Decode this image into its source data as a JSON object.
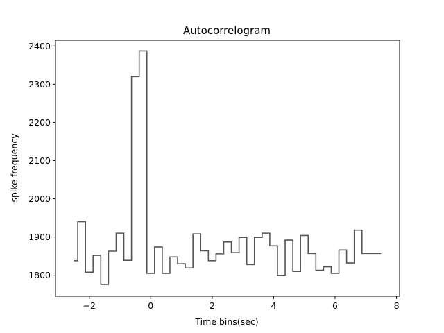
{
  "chart_data": {
    "type": "line",
    "title": "Autocorrelogram",
    "xlabel": "Time bins(sec)",
    "ylabel": "spike frequency",
    "xlim": [
      -3.1,
      8.1
    ],
    "ylim": [
      1745,
      2415
    ],
    "xticks": [
      -2,
      0,
      2,
      4,
      6,
      8
    ],
    "xtick_labels": [
      "−2",
      "0",
      "2",
      "4",
      "6",
      "8"
    ],
    "yticks": [
      1800,
      1900,
      2000,
      2100,
      2200,
      2300,
      2400
    ],
    "ytick_labels": [
      "1800",
      "1900",
      "2000",
      "2100",
      "2200",
      "2300",
      "2400"
    ],
    "grid": false,
    "drawstyle": "steps-mid",
    "series": [
      {
        "color": "#555555",
        "x": [
          -2.5,
          -2.25,
          -2.0,
          -1.75,
          -1.5,
          -1.25,
          -1.0,
          -0.75,
          -0.5,
          -0.25,
          0.0,
          0.25,
          0.5,
          0.75,
          1.0,
          1.25,
          1.5,
          1.75,
          2.0,
          2.25,
          2.5,
          2.75,
          3.0,
          3.25,
          3.5,
          3.75,
          4.0,
          4.25,
          4.5,
          4.75,
          5.0,
          5.25,
          5.5,
          5.75,
          6.0,
          6.25,
          6.5,
          6.75,
          7.0,
          7.25,
          7.5
        ],
        "values": [
          1838,
          1940,
          1808,
          1852,
          1776,
          1863,
          1910,
          1839,
          2320,
          2387,
          1805,
          1874,
          1805,
          1848,
          1830,
          1819,
          1908,
          1864,
          1838,
          1856,
          1887,
          1859,
          1899,
          1828,
          1899,
          1910,
          1877,
          1799,
          1892,
          1810,
          1904,
          1857,
          1813,
          1822,
          1805,
          1866,
          1832,
          1918,
          1857,
          1857,
          1857
        ]
      }
    ]
  }
}
